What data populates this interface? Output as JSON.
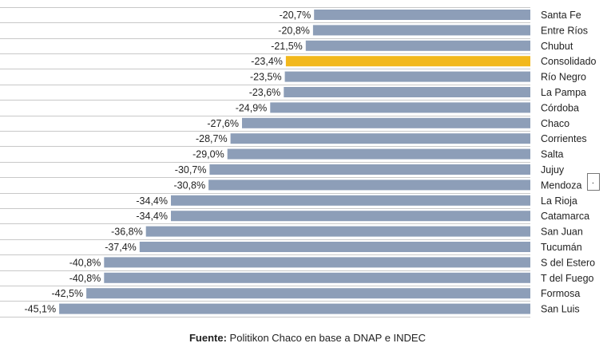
{
  "colors": {
    "bar": "#8d9eb8",
    "highlight": "#f2b81c",
    "grid": "#c8c8c8",
    "text": "#222222"
  },
  "chart_data": {
    "type": "bar",
    "orientation": "horizontal",
    "categories": [
      "Santa Fe",
      "Entre Ríos",
      "Chubut",
      "Consolidado",
      "Río Negro",
      "La Pampa",
      "Córdoba",
      "Chaco",
      "Corrientes",
      "Salta",
      "Jujuy",
      "Mendoza",
      "La Rioja",
      "Catamarca",
      "San Juan",
      "Tucumán",
      "S del Estero",
      "T del Fuego",
      "Formosa",
      "San Luis"
    ],
    "values": [
      -20.7,
      -20.8,
      -21.5,
      -23.4,
      -23.5,
      -23.6,
      -24.9,
      -27.6,
      -28.7,
      -29.0,
      -30.7,
      -30.8,
      -34.4,
      -34.4,
      -36.8,
      -37.4,
      -40.8,
      -40.8,
      -42.5,
      -45.1
    ],
    "value_labels": [
      "-20,7%",
      "-20,8%",
      "-21,5%",
      "-23,4%",
      "-23,5%",
      "-23,6%",
      "-24,9%",
      "-27,6%",
      "-28,7%",
      "-29,0%",
      "-30,7%",
      "-30,8%",
      "-34,4%",
      "-34,4%",
      "-36,8%",
      "-37,4%",
      "-40,8%",
      "-40,8%",
      "-42,5%",
      "-45,1%"
    ],
    "highlighted_category": "Consolidado",
    "grid": true
  },
  "footer": {
    "source_label": "Fuente:",
    "source_text": " Politikon Chaco en base a DNAP e INDEC"
  },
  "side_box": {
    "text": "."
  }
}
